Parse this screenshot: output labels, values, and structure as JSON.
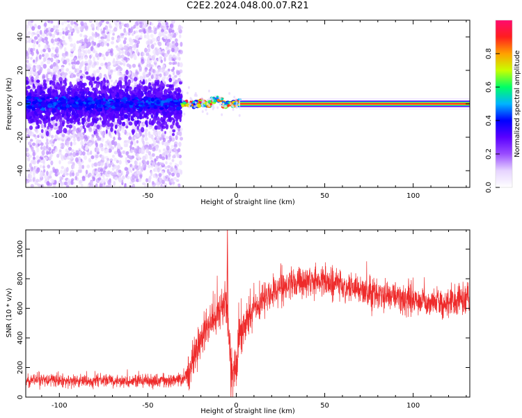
{
  "title": "C2E2.2024.048.00.07.R21",
  "colors": {
    "snr_line": "#ee2a2a",
    "spectro_cmap": [
      "#ffffff",
      "#e6d4ff",
      "#9a4dff",
      "#5a00ff",
      "#0000ff",
      "#00b4ff",
      "#00ff66",
      "#c8ff00",
      "#ffa000",
      "#ff1e1e",
      "#ff0a6e"
    ]
  },
  "chart_data": [
    {
      "type": "heatmap",
      "name": "spectrogram",
      "xlabel": "Height of straight line (km)",
      "ylabel": "Frequency (Hz)",
      "xlim": [
        -119,
        132
      ],
      "ylim": [
        -50,
        50
      ],
      "xticks": [
        -100,
        -50,
        0,
        50,
        100
      ],
      "yticks": [
        -40,
        -20,
        0,
        20,
        40
      ],
      "grid": false,
      "colorbar": {
        "label": "Normalized spectral amplitude",
        "range": [
          0.0,
          1.0
        ],
        "ticks": [
          0.0,
          0.2,
          0.4,
          0.6,
          0.8
        ]
      },
      "regions": [
        {
          "x_from": -119,
          "x_to": -31,
          "description_value": "broadband scatter, amplitude 0.05-0.35, concentrated within +/-10 Hz"
        },
        {
          "x_from": -31,
          "x_to": 2,
          "description_value": "transition, narrow band near 0 Hz, amplitude 0.3-1.0"
        },
        {
          "x_from": 2,
          "x_to": 132,
          "description_value": "narrow band at 0 Hz, amplitude 1.0"
        }
      ]
    },
    {
      "type": "line",
      "name": "snr",
      "xlabel": "Height of straight line (km)",
      "ylabel": "SNR (10 * v/v)",
      "xlim": [
        -119,
        132
      ],
      "ylim": [
        0,
        1130
      ],
      "xticks": [
        -100,
        -50,
        0,
        50,
        100
      ],
      "yticks": [
        0,
        200,
        400,
        600,
        800,
        1000
      ],
      "grid": false,
      "series": [
        {
          "x": [
            -119,
            -110,
            -100,
            -90,
            -80,
            -70,
            -60,
            -50,
            -40,
            -30,
            -26,
            -22,
            -18,
            -14,
            -10,
            -6,
            -4,
            -2,
            0,
            2,
            6,
            10,
            15,
            20,
            25,
            30,
            40,
            50,
            60,
            70,
            80,
            90,
            100,
            110,
            120,
            132
          ],
          "values": [
            110,
            115,
            112,
            108,
            110,
            110,
            105,
            110,
            112,
            120,
            200,
            340,
            450,
            500,
            560,
            650,
            400,
            150,
            200,
            430,
            530,
            600,
            650,
            700,
            740,
            760,
            780,
            790,
            760,
            730,
            700,
            680,
            660,
            650,
            640,
            660
          ]
        }
      ],
      "features": {
        "max_spike": {
          "x": -5,
          "value": 1130
        },
        "min_dip": {
          "x": -3,
          "value": 0
        }
      }
    }
  ]
}
